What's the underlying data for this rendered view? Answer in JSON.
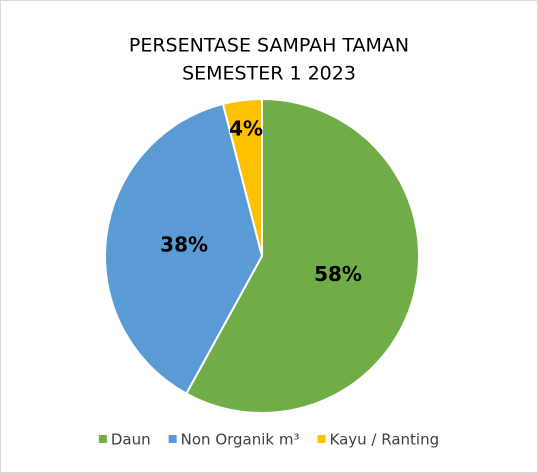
{
  "chart_data": {
    "type": "pie",
    "title": [
      "PERSENTASE SAMPAH TAMAN",
      "SEMESTER 1 2023"
    ],
    "categories": [
      "Daun",
      "Non Organik m³",
      "Kayu / Ranting"
    ],
    "values": [
      58,
      38,
      4
    ],
    "value_labels": [
      "58%",
      "38%",
      "4%"
    ],
    "colors": [
      "#70ad47",
      "#5b9bd5",
      "#ffc000"
    ],
    "legend": "bottom"
  }
}
